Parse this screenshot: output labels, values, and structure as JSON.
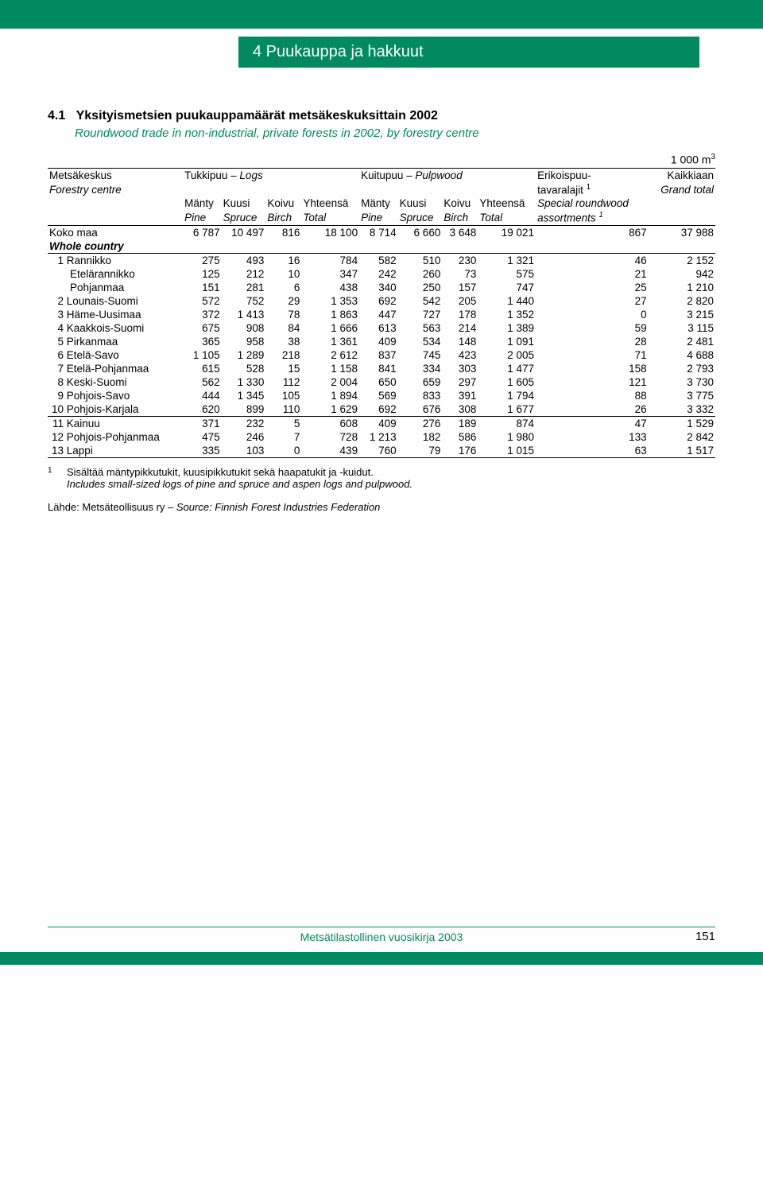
{
  "chapter_title": "4 Puukauppa ja hakkuut",
  "table": {
    "number": "4.1",
    "title_fi": "Yksityismetsien puukauppamäärät metsäkeskuksittain 2002",
    "title_en": "Roundwood trade in non-industrial, private forests in 2002, by forestry centre",
    "unit": "1 000 m",
    "unit_sup": "3",
    "header": {
      "col_region_fi": "Metsäkeskus",
      "col_region_en": "Forestry centre",
      "grp_logs_fi": "Tukkipuu –",
      "grp_logs_en": "Logs",
      "grp_pulp_fi": "Kuitupuu –",
      "grp_pulp_en": "Pulpwood",
      "grp_special_fi": "Erikoispuu-",
      "grp_special_fi2": "tavaralajit",
      "grp_special_sup": "1",
      "grp_total_fi": "Kaikkiaan",
      "grp_total_en": "Grand total",
      "grp_special_en1": "Special roundwood",
      "grp_special_en2": "assortments",
      "sub": [
        {
          "fi": "Mänty",
          "en": "Pine"
        },
        {
          "fi": "Kuusi",
          "en": "Spruce"
        },
        {
          "fi": "Koivu",
          "en": "Birch"
        },
        {
          "fi": "Yhteensä",
          "en": "Total"
        },
        {
          "fi": "Mänty",
          "en": "Pine"
        },
        {
          "fi": "Kuusi",
          "en": "Spruce"
        },
        {
          "fi": "Koivu",
          "en": "Birch"
        },
        {
          "fi": "Yhteensä",
          "en": "Total"
        }
      ]
    },
    "whole": {
      "label_fi": "Koko maa",
      "label_en": "Whole country",
      "vals": [
        "6 787",
        "10 497",
        "816",
        "18 100",
        "8 714",
        "6 660",
        "3 648",
        "19 021",
        "867",
        "37 988"
      ]
    },
    "rows": [
      {
        "n": "1",
        "name": "Rannikko",
        "v": [
          "275",
          "493",
          "16",
          "784",
          "582",
          "510",
          "230",
          "1 321",
          "46",
          "2 152"
        ]
      },
      {
        "n": "",
        "name": "Etelärannikko",
        "indent": true,
        "v": [
          "125",
          "212",
          "10",
          "347",
          "242",
          "260",
          "73",
          "575",
          "21",
          "942"
        ]
      },
      {
        "n": "",
        "name": "Pohjanmaa",
        "indent": true,
        "v": [
          "151",
          "281",
          "6",
          "438",
          "340",
          "250",
          "157",
          "747",
          "25",
          "1 210"
        ]
      },
      {
        "n": "2",
        "name": "Lounais-Suomi",
        "v": [
          "572",
          "752",
          "29",
          "1 353",
          "692",
          "542",
          "205",
          "1 440",
          "27",
          "2 820"
        ]
      },
      {
        "n": "3",
        "name": "Häme-Uusimaa",
        "v": [
          "372",
          "1 413",
          "78",
          "1 863",
          "447",
          "727",
          "178",
          "1 352",
          "0",
          "3 215"
        ]
      },
      {
        "n": "4",
        "name": "Kaakkois-Suomi",
        "v": [
          "675",
          "908",
          "84",
          "1 666",
          "613",
          "563",
          "214",
          "1 389",
          "59",
          "3 115"
        ]
      },
      {
        "n": "5",
        "name": "Pirkanmaa",
        "v": [
          "365",
          "958",
          "38",
          "1 361",
          "409",
          "534",
          "148",
          "1 091",
          "28",
          "2 481"
        ]
      },
      {
        "n": "6",
        "name": "Etelä-Savo",
        "v": [
          "1 105",
          "1 289",
          "218",
          "2 612",
          "837",
          "745",
          "423",
          "2 005",
          "71",
          "4 688"
        ]
      },
      {
        "n": "7",
        "name": "Etelä-Pohjanmaa",
        "v": [
          "615",
          "528",
          "15",
          "1 158",
          "841",
          "334",
          "303",
          "1 477",
          "158",
          "2 793"
        ]
      },
      {
        "n": "8",
        "name": "Keski-Suomi",
        "v": [
          "562",
          "1 330",
          "112",
          "2 004",
          "650",
          "659",
          "297",
          "1 605",
          "121",
          "3 730"
        ]
      },
      {
        "n": "9",
        "name": "Pohjois-Savo",
        "v": [
          "444",
          "1 345",
          "105",
          "1 894",
          "569",
          "833",
          "391",
          "1 794",
          "88",
          "3 775"
        ]
      },
      {
        "n": "10",
        "name": "Pohjois-Karjala",
        "v": [
          "620",
          "899",
          "110",
          "1 629",
          "692",
          "676",
          "308",
          "1 677",
          "26",
          "3 332"
        ]
      }
    ],
    "rows2": [
      {
        "n": "11",
        "name": "Kainuu",
        "v": [
          "371",
          "232",
          "5",
          "608",
          "409",
          "276",
          "189",
          "874",
          "47",
          "1 529"
        ]
      },
      {
        "n": "12",
        "name": "Pohjois-Pohjanmaa",
        "v": [
          "475",
          "246",
          "7",
          "728",
          "1 213",
          "182",
          "586",
          "1 980",
          "133",
          "2 842"
        ]
      },
      {
        "n": "13",
        "name": "Lappi",
        "v": [
          "335",
          "103",
          "0",
          "439",
          "760",
          "79",
          "176",
          "1 015",
          "63",
          "1 517"
        ]
      }
    ]
  },
  "footnote": {
    "num": "1",
    "fi": "Sisältää mäntypikkutukit, kuusipikkutukit sekä haapatukit ja -kuidut.",
    "en": "Includes small-sized logs of pine and spruce and aspen logs and pulpwood."
  },
  "source": {
    "fi": "Lähde: Metsäteollisuus ry –",
    "en": "Source: Finnish Forest Industries Federation"
  },
  "footer": {
    "book": "Metsätilastollinen vuosikirja 2003",
    "page": "151"
  }
}
